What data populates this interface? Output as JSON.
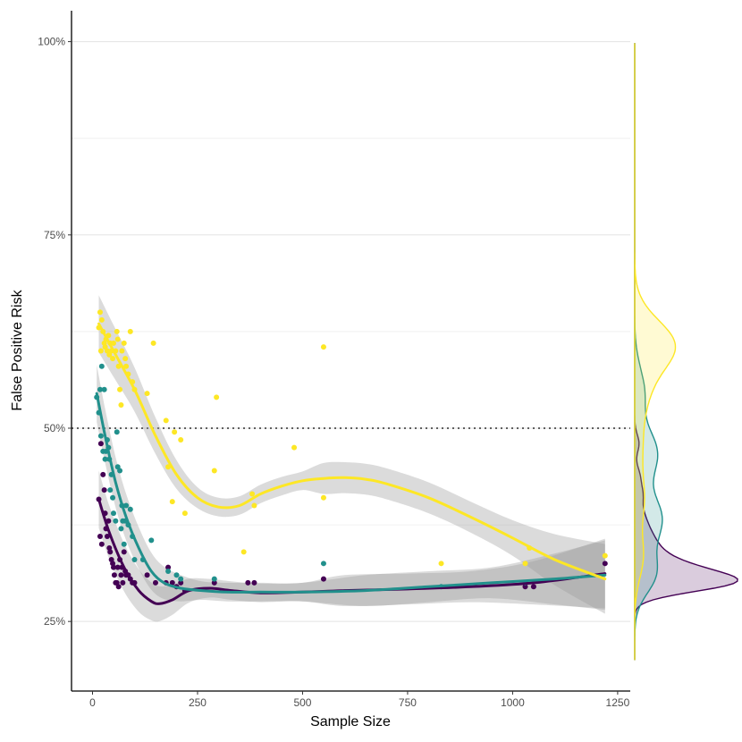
{
  "chart_data": {
    "type": "scatter",
    "title": "",
    "xlabel": "Sample Size",
    "ylabel": "False Positive Risk",
    "xlim": [
      -50,
      1280
    ],
    "ylim": [
      0.16,
      1.04
    ],
    "x_ticks": [
      0,
      250,
      500,
      750,
      1000,
      1250
    ],
    "x_tick_labels": [
      "0",
      "250",
      "500",
      "750",
      "1000",
      "1250"
    ],
    "y_ticks": [
      0.25,
      0.5,
      0.75,
      1.0
    ],
    "y_tick_labels": [
      "25%",
      "50%",
      "75%",
      "100%"
    ],
    "y_minor_grid": [
      0.375,
      0.625,
      0.875
    ],
    "grid": "horizontal",
    "reference_line": 0.5,
    "legend": "none",
    "marginal": "density-right",
    "series": [
      {
        "color": "#440154",
        "points": [
          [
            15,
            0.408
          ],
          [
            18,
            0.36
          ],
          [
            20,
            0.48
          ],
          [
            22,
            0.35
          ],
          [
            25,
            0.44
          ],
          [
            28,
            0.42
          ],
          [
            30,
            0.39
          ],
          [
            32,
            0.37
          ],
          [
            35,
            0.36
          ],
          [
            38,
            0.38
          ],
          [
            40,
            0.345
          ],
          [
            42,
            0.34
          ],
          [
            45,
            0.33
          ],
          [
            48,
            0.325
          ],
          [
            50,
            0.32
          ],
          [
            52,
            0.31
          ],
          [
            55,
            0.3
          ],
          [
            58,
            0.3
          ],
          [
            60,
            0.32
          ],
          [
            62,
            0.295
          ],
          [
            65,
            0.33
          ],
          [
            68,
            0.31
          ],
          [
            70,
            0.32
          ],
          [
            72,
            0.3
          ],
          [
            75,
            0.34
          ],
          [
            78,
            0.315
          ],
          [
            80,
            0.31
          ],
          [
            85,
            0.31
          ],
          [
            90,
            0.305
          ],
          [
            95,
            0.3
          ],
          [
            100,
            0.3
          ],
          [
            130,
            0.31
          ],
          [
            150,
            0.3
          ],
          [
            175,
            0.3
          ],
          [
            180,
            0.32
          ],
          [
            190,
            0.3
          ],
          [
            200,
            0.295
          ],
          [
            210,
            0.3
          ],
          [
            220,
            0.29
          ],
          [
            290,
            0.3
          ],
          [
            370,
            0.3
          ],
          [
            385,
            0.3
          ],
          [
            550,
            0.305
          ],
          [
            1030,
            0.295
          ],
          [
            1050,
            0.295
          ],
          [
            1220,
            0.325
          ]
        ],
        "fit": [
          [
            15,
            0.408
          ],
          [
            40,
            0.365
          ],
          [
            75,
            0.32
          ],
          [
            110,
            0.29
          ],
          [
            140,
            0.276
          ],
          [
            160,
            0.273
          ],
          [
            190,
            0.278
          ],
          [
            230,
            0.29
          ],
          [
            280,
            0.293
          ],
          [
            330,
            0.29
          ],
          [
            400,
            0.287
          ],
          [
            500,
            0.288
          ],
          [
            600,
            0.29
          ],
          [
            750,
            0.292
          ],
          [
            900,
            0.295
          ],
          [
            1050,
            0.3
          ],
          [
            1220,
            0.312
          ]
        ]
      },
      {
        "color": "#21908C",
        "points": [
          [
            10,
            0.54
          ],
          [
            15,
            0.52
          ],
          [
            18,
            0.55
          ],
          [
            20,
            0.49
          ],
          [
            22,
            0.58
          ],
          [
            25,
            0.47
          ],
          [
            28,
            0.55
          ],
          [
            30,
            0.46
          ],
          [
            32,
            0.47
          ],
          [
            35,
            0.485
          ],
          [
            38,
            0.475
          ],
          [
            40,
            0.46
          ],
          [
            42,
            0.42
          ],
          [
            45,
            0.44
          ],
          [
            48,
            0.41
          ],
          [
            50,
            0.39
          ],
          [
            55,
            0.38
          ],
          [
            58,
            0.495
          ],
          [
            60,
            0.45
          ],
          [
            65,
            0.445
          ],
          [
            68,
            0.37
          ],
          [
            70,
            0.4
          ],
          [
            72,
            0.38
          ],
          [
            75,
            0.35
          ],
          [
            78,
            0.38
          ],
          [
            80,
            0.4
          ],
          [
            85,
            0.375
          ],
          [
            90,
            0.395
          ],
          [
            95,
            0.36
          ],
          [
            100,
            0.33
          ],
          [
            120,
            0.33
          ],
          [
            140,
            0.355
          ],
          [
            180,
            0.315
          ],
          [
            200,
            0.31
          ],
          [
            210,
            0.305
          ],
          [
            290,
            0.305
          ],
          [
            550,
            0.325
          ],
          [
            830,
            0.295
          ],
          [
            1030,
            0.3
          ]
        ],
        "fit": [
          [
            10,
            0.545
          ],
          [
            30,
            0.49
          ],
          [
            55,
            0.43
          ],
          [
            80,
            0.385
          ],
          [
            110,
            0.345
          ],
          [
            140,
            0.315
          ],
          [
            170,
            0.3
          ],
          [
            210,
            0.293
          ],
          [
            260,
            0.29
          ],
          [
            320,
            0.288
          ],
          [
            400,
            0.288
          ],
          [
            500,
            0.288
          ],
          [
            650,
            0.29
          ],
          [
            800,
            0.295
          ],
          [
            950,
            0.3
          ],
          [
            1100,
            0.305
          ],
          [
            1220,
            0.31
          ]
        ]
      },
      {
        "color": "#FDE725",
        "points": [
          [
            15,
            0.63
          ],
          [
            18,
            0.65
          ],
          [
            20,
            0.6
          ],
          [
            22,
            0.64
          ],
          [
            25,
            0.625
          ],
          [
            28,
            0.61
          ],
          [
            30,
            0.605
          ],
          [
            32,
            0.615
          ],
          [
            35,
            0.6
          ],
          [
            38,
            0.62
          ],
          [
            40,
            0.595
          ],
          [
            42,
            0.61
          ],
          [
            45,
            0.6
          ],
          [
            48,
            0.59
          ],
          [
            50,
            0.61
          ],
          [
            55,
            0.6
          ],
          [
            58,
            0.625
          ],
          [
            60,
            0.615
          ],
          [
            62,
            0.58
          ],
          [
            65,
            0.55
          ],
          [
            68,
            0.53
          ],
          [
            70,
            0.6
          ],
          [
            75,
            0.61
          ],
          [
            78,
            0.59
          ],
          [
            80,
            0.58
          ],
          [
            85,
            0.57
          ],
          [
            90,
            0.625
          ],
          [
            95,
            0.56
          ],
          [
            100,
            0.55
          ],
          [
            130,
            0.545
          ],
          [
            145,
            0.61
          ],
          [
            175,
            0.51
          ],
          [
            180,
            0.45
          ],
          [
            190,
            0.405
          ],
          [
            195,
            0.495
          ],
          [
            210,
            0.485
          ],
          [
            220,
            0.39
          ],
          [
            290,
            0.445
          ],
          [
            295,
            0.54
          ],
          [
            360,
            0.34
          ],
          [
            380,
            0.415
          ],
          [
            385,
            0.4
          ],
          [
            480,
            0.475
          ],
          [
            550,
            0.605
          ],
          [
            550,
            0.41
          ],
          [
            830,
            0.325
          ],
          [
            1030,
            0.325
          ],
          [
            1040,
            0.345
          ],
          [
            1220,
            0.335
          ]
        ],
        "fit": [
          [
            15,
            0.635
          ],
          [
            50,
            0.6
          ],
          [
            100,
            0.55
          ],
          [
            150,
            0.49
          ],
          [
            200,
            0.44
          ],
          [
            250,
            0.41
          ],
          [
            300,
            0.398
          ],
          [
            350,
            0.4
          ],
          [
            400,
            0.415
          ],
          [
            450,
            0.425
          ],
          [
            500,
            0.432
          ],
          [
            550,
            0.435
          ],
          [
            600,
            0.436
          ],
          [
            650,
            0.434
          ],
          [
            700,
            0.428
          ],
          [
            800,
            0.41
          ],
          [
            900,
            0.385
          ],
          [
            1000,
            0.358
          ],
          [
            1100,
            0.33
          ],
          [
            1220,
            0.305
          ]
        ]
      }
    ]
  }
}
